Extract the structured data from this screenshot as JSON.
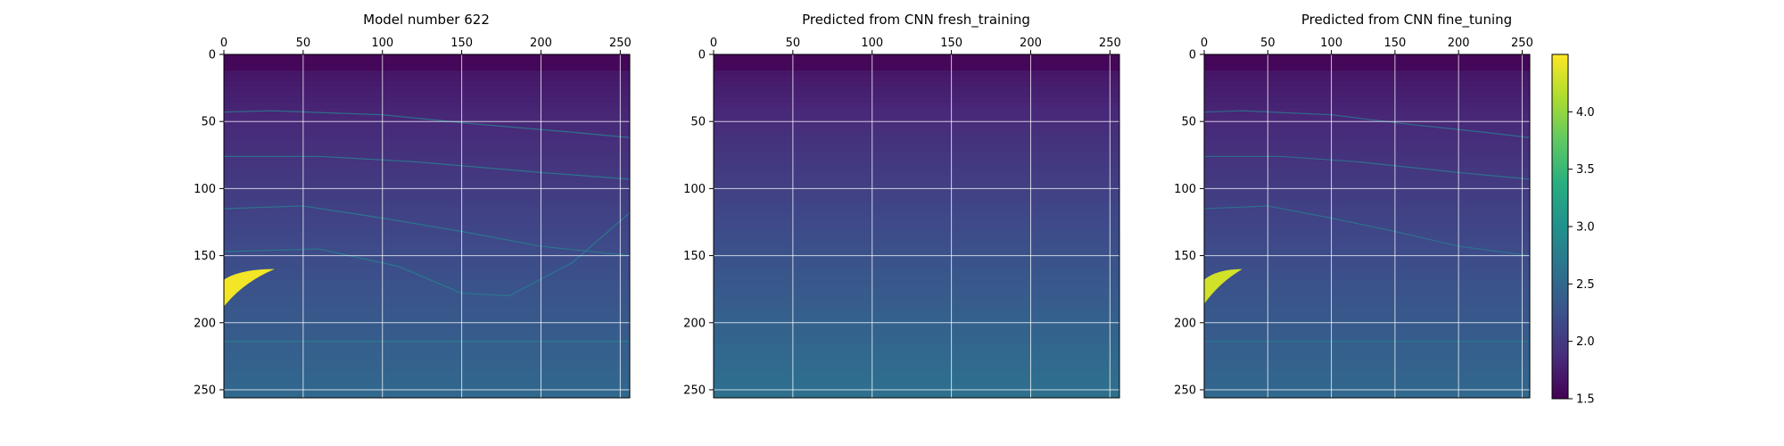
{
  "chart_data": [
    {
      "type": "heatmap",
      "title": "Model number 622",
      "x_ticks": [
        0,
        50,
        100,
        150,
        200,
        250
      ],
      "y_ticks": [
        0,
        50,
        100,
        150,
        200,
        250
      ],
      "xlim": [
        0,
        256
      ],
      "ylim": [
        256,
        0
      ],
      "x_axis_position": "top",
      "grid": true,
      "colormap": "viridis",
      "background_range": [
        1.6,
        2.5
      ],
      "layer_boundaries": [
        {
          "x": [
            0,
            30,
            100,
            160,
            220,
            256
          ],
          "y": [
            43,
            42,
            45,
            52,
            58,
            62
          ],
          "value": 2.8
        },
        {
          "x": [
            0,
            60,
            120,
            200,
            256
          ],
          "y": [
            76,
            76,
            80,
            88,
            93
          ],
          "value": 2.8
        },
        {
          "x": [
            0,
            50,
            100,
            150,
            200,
            256
          ],
          "y": [
            115,
            113,
            122,
            132,
            143,
            150
          ],
          "value": 2.8
        },
        {
          "x": [
            0,
            60,
            110,
            150,
            180,
            220,
            256
          ],
          "y": [
            147,
            145,
            158,
            178,
            180,
            155,
            118
          ],
          "value": 2.8
        },
        {
          "x": [
            0,
            256
          ],
          "y": [
            214,
            214
          ],
          "value": 2.9
        }
      ],
      "anomaly": {
        "value": 4.45,
        "x_range": [
          0,
          32
        ],
        "y_range": [
          160,
          188
        ]
      }
    },
    {
      "type": "heatmap",
      "title": "Predicted from CNN fresh_training",
      "x_ticks": [
        0,
        50,
        100,
        150,
        200,
        250
      ],
      "y_ticks": [
        0,
        50,
        100,
        150,
        200,
        250
      ],
      "xlim": [
        0,
        256
      ],
      "ylim": [
        256,
        0
      ],
      "x_axis_position": "top",
      "grid": true,
      "colormap": "viridis",
      "background_range": [
        1.6,
        2.6
      ],
      "layer_boundaries": [
        {
          "x": [
            0,
            256
          ],
          "y": [
            214,
            214
          ],
          "value": 2.8
        }
      ]
    },
    {
      "type": "heatmap",
      "title": "Predicted from CNN fine_tuning",
      "x_ticks": [
        0,
        50,
        100,
        150,
        200,
        250
      ],
      "y_ticks": [
        0,
        50,
        100,
        150,
        200,
        250
      ],
      "xlim": [
        0,
        256
      ],
      "ylim": [
        256,
        0
      ],
      "x_axis_position": "top",
      "grid": true,
      "colormap": "viridis",
      "background_range": [
        1.6,
        2.5
      ],
      "layer_boundaries": [
        {
          "x": [
            0,
            30,
            100,
            160,
            220,
            256
          ],
          "y": [
            43,
            42,
            45,
            52,
            58,
            62
          ],
          "value": 2.7
        },
        {
          "x": [
            0,
            60,
            120,
            200,
            256
          ],
          "y": [
            76,
            76,
            80,
            88,
            93
          ],
          "value": 2.7
        },
        {
          "x": [
            0,
            50,
            100,
            150,
            200,
            256
          ],
          "y": [
            115,
            113,
            122,
            132,
            143,
            150
          ],
          "value": 2.7
        },
        {
          "x": [
            0,
            256
          ],
          "y": [
            214,
            214
          ],
          "value": 2.8
        }
      ],
      "anomaly": {
        "value": 4.3,
        "x_range": [
          0,
          30
        ],
        "y_range": [
          160,
          186
        ]
      }
    }
  ],
  "colorbar": {
    "min": 1.5,
    "max": 4.5,
    "ticks": [
      1.5,
      2.0,
      2.5,
      3.0,
      3.5,
      4.0
    ],
    "tick_labels": [
      "1.5",
      "2.0",
      "2.5",
      "3.0",
      "3.5",
      "4.0"
    ],
    "colormap": "viridis"
  }
}
